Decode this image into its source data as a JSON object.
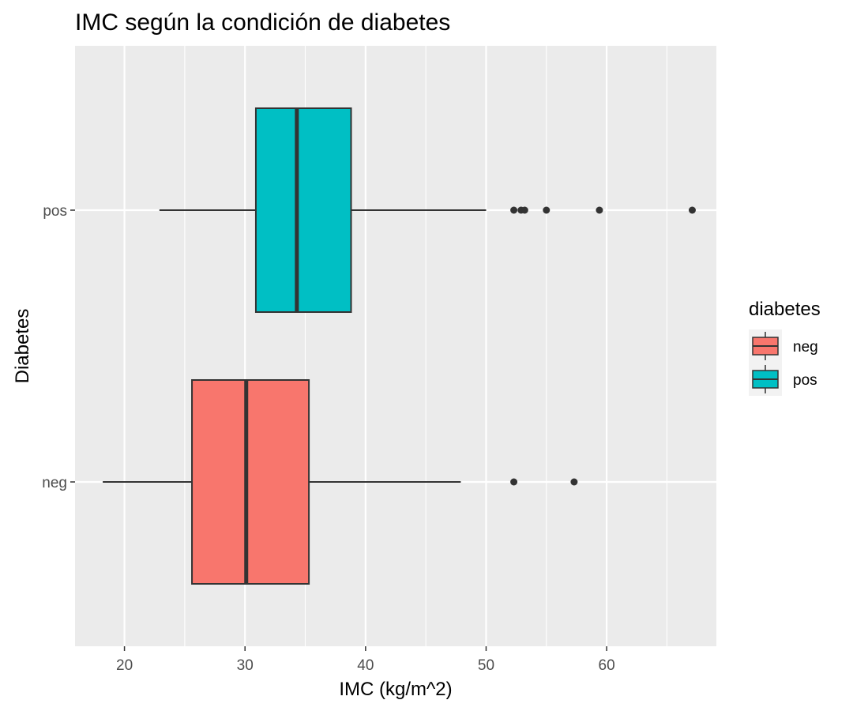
{
  "chart_data": {
    "type": "boxplot",
    "orientation": "horizontal",
    "title": "IMC según la condición de diabetes",
    "xlabel": "IMC (kg/m^2)",
    "ylabel": "Diabetes",
    "xlim": [
      15.9,
      69.1
    ],
    "xticks": [
      20,
      30,
      40,
      50,
      60
    ],
    "xtick_labels": [
      "20",
      "30",
      "40",
      "50",
      "60"
    ],
    "grid": true,
    "legend": {
      "title": "diabetes",
      "position": "right",
      "entries": [
        {
          "label": "neg",
          "color": "#F8766D"
        },
        {
          "label": "pos",
          "color": "#00BFC4"
        }
      ]
    },
    "categories": [
      "neg",
      "pos"
    ],
    "series": [
      {
        "name": "neg",
        "color": "#F8766D",
        "whisker_low": 18.2,
        "q1": 25.6,
        "median": 30.1,
        "q3": 35.3,
        "whisker_high": 47.9,
        "outliers": [
          52.3,
          57.3
        ]
      },
      {
        "name": "pos",
        "color": "#00BFC4",
        "whisker_low": 22.9,
        "q1": 30.9,
        "median": 34.3,
        "q3": 38.8,
        "whisker_high": 50.0,
        "outliers": [
          52.3,
          52.9,
          53.2,
          55.0,
          59.4,
          67.1
        ]
      }
    ]
  }
}
